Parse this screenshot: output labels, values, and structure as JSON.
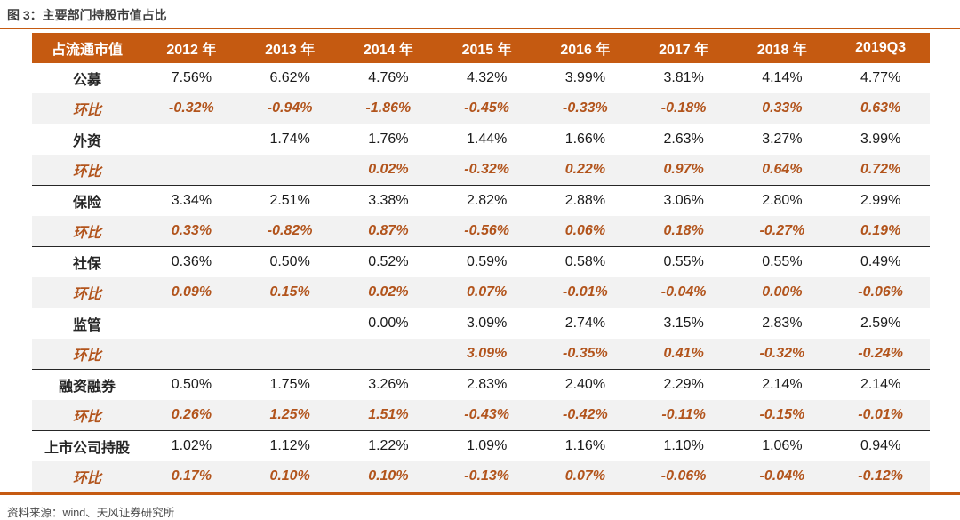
{
  "title": "图 3：主要部门持股市值占比",
  "source": "资料来源：wind、天风证券研究所",
  "colors": {
    "accent_orange": "#C55A11",
    "delta_text": "#B2541C",
    "delta_row_bg": "#f2f2f2",
    "header_text": "#ffffff",
    "body_text": "#1a1a1a",
    "title_text": "#3d3d3d"
  },
  "chart_data": {
    "type": "table",
    "title": "主要部门持股市值占比",
    "columns": [
      "占流通市值",
      "2012 年",
      "2013 年",
      "2014 年",
      "2015 年",
      "2016 年",
      "2017 年",
      "2018 年",
      "2019Q3"
    ],
    "rows": [
      {
        "label": "公募",
        "type": "value",
        "values": [
          "7.56%",
          "6.62%",
          "4.76%",
          "4.32%",
          "3.99%",
          "3.81%",
          "4.14%",
          "4.77%"
        ]
      },
      {
        "label": "环比",
        "type": "delta",
        "values": [
          "-0.32%",
          "-0.94%",
          "-1.86%",
          "-0.45%",
          "-0.33%",
          "-0.18%",
          "0.33%",
          "0.63%"
        ]
      },
      {
        "label": "外资",
        "type": "value",
        "values": [
          "",
          "1.74%",
          "1.76%",
          "1.44%",
          "1.66%",
          "2.63%",
          "3.27%",
          "3.99%"
        ]
      },
      {
        "label": "环比",
        "type": "delta",
        "values": [
          "",
          "",
          "0.02%",
          "-0.32%",
          "0.22%",
          "0.97%",
          "0.64%",
          "0.72%"
        ]
      },
      {
        "label": "保险",
        "type": "value",
        "values": [
          "3.34%",
          "2.51%",
          "3.38%",
          "2.82%",
          "2.88%",
          "3.06%",
          "2.80%",
          "2.99%"
        ]
      },
      {
        "label": "环比",
        "type": "delta",
        "values": [
          "0.33%",
          "-0.82%",
          "0.87%",
          "-0.56%",
          "0.06%",
          "0.18%",
          "-0.27%",
          "0.19%"
        ]
      },
      {
        "label": "社保",
        "type": "value",
        "values": [
          "0.36%",
          "0.50%",
          "0.52%",
          "0.59%",
          "0.58%",
          "0.55%",
          "0.55%",
          "0.49%"
        ]
      },
      {
        "label": "环比",
        "type": "delta",
        "values": [
          "0.09%",
          "0.15%",
          "0.02%",
          "0.07%",
          "-0.01%",
          "-0.04%",
          "0.00%",
          "-0.06%"
        ]
      },
      {
        "label": "监管",
        "type": "value",
        "values": [
          "",
          "",
          "0.00%",
          "3.09%",
          "2.74%",
          "3.15%",
          "2.83%",
          "2.59%"
        ]
      },
      {
        "label": "环比",
        "type": "delta",
        "values": [
          "",
          "",
          "",
          "3.09%",
          "-0.35%",
          "0.41%",
          "-0.32%",
          "-0.24%"
        ]
      },
      {
        "label": "融资融券",
        "type": "value",
        "values": [
          "0.50%",
          "1.75%",
          "3.26%",
          "2.83%",
          "2.40%",
          "2.29%",
          "2.14%",
          "2.14%"
        ]
      },
      {
        "label": "环比",
        "type": "delta",
        "values": [
          "0.26%",
          "1.25%",
          "1.51%",
          "-0.43%",
          "-0.42%",
          "-0.11%",
          "-0.15%",
          "-0.01%"
        ]
      },
      {
        "label": "上市公司持股",
        "type": "value",
        "values": [
          "1.02%",
          "1.12%",
          "1.22%",
          "1.09%",
          "1.16%",
          "1.10%",
          "1.06%",
          "0.94%"
        ]
      },
      {
        "label": "环比",
        "type": "delta",
        "values": [
          "0.17%",
          "0.10%",
          "0.10%",
          "-0.13%",
          "0.07%",
          "-0.06%",
          "-0.04%",
          "-0.12%"
        ]
      }
    ]
  }
}
